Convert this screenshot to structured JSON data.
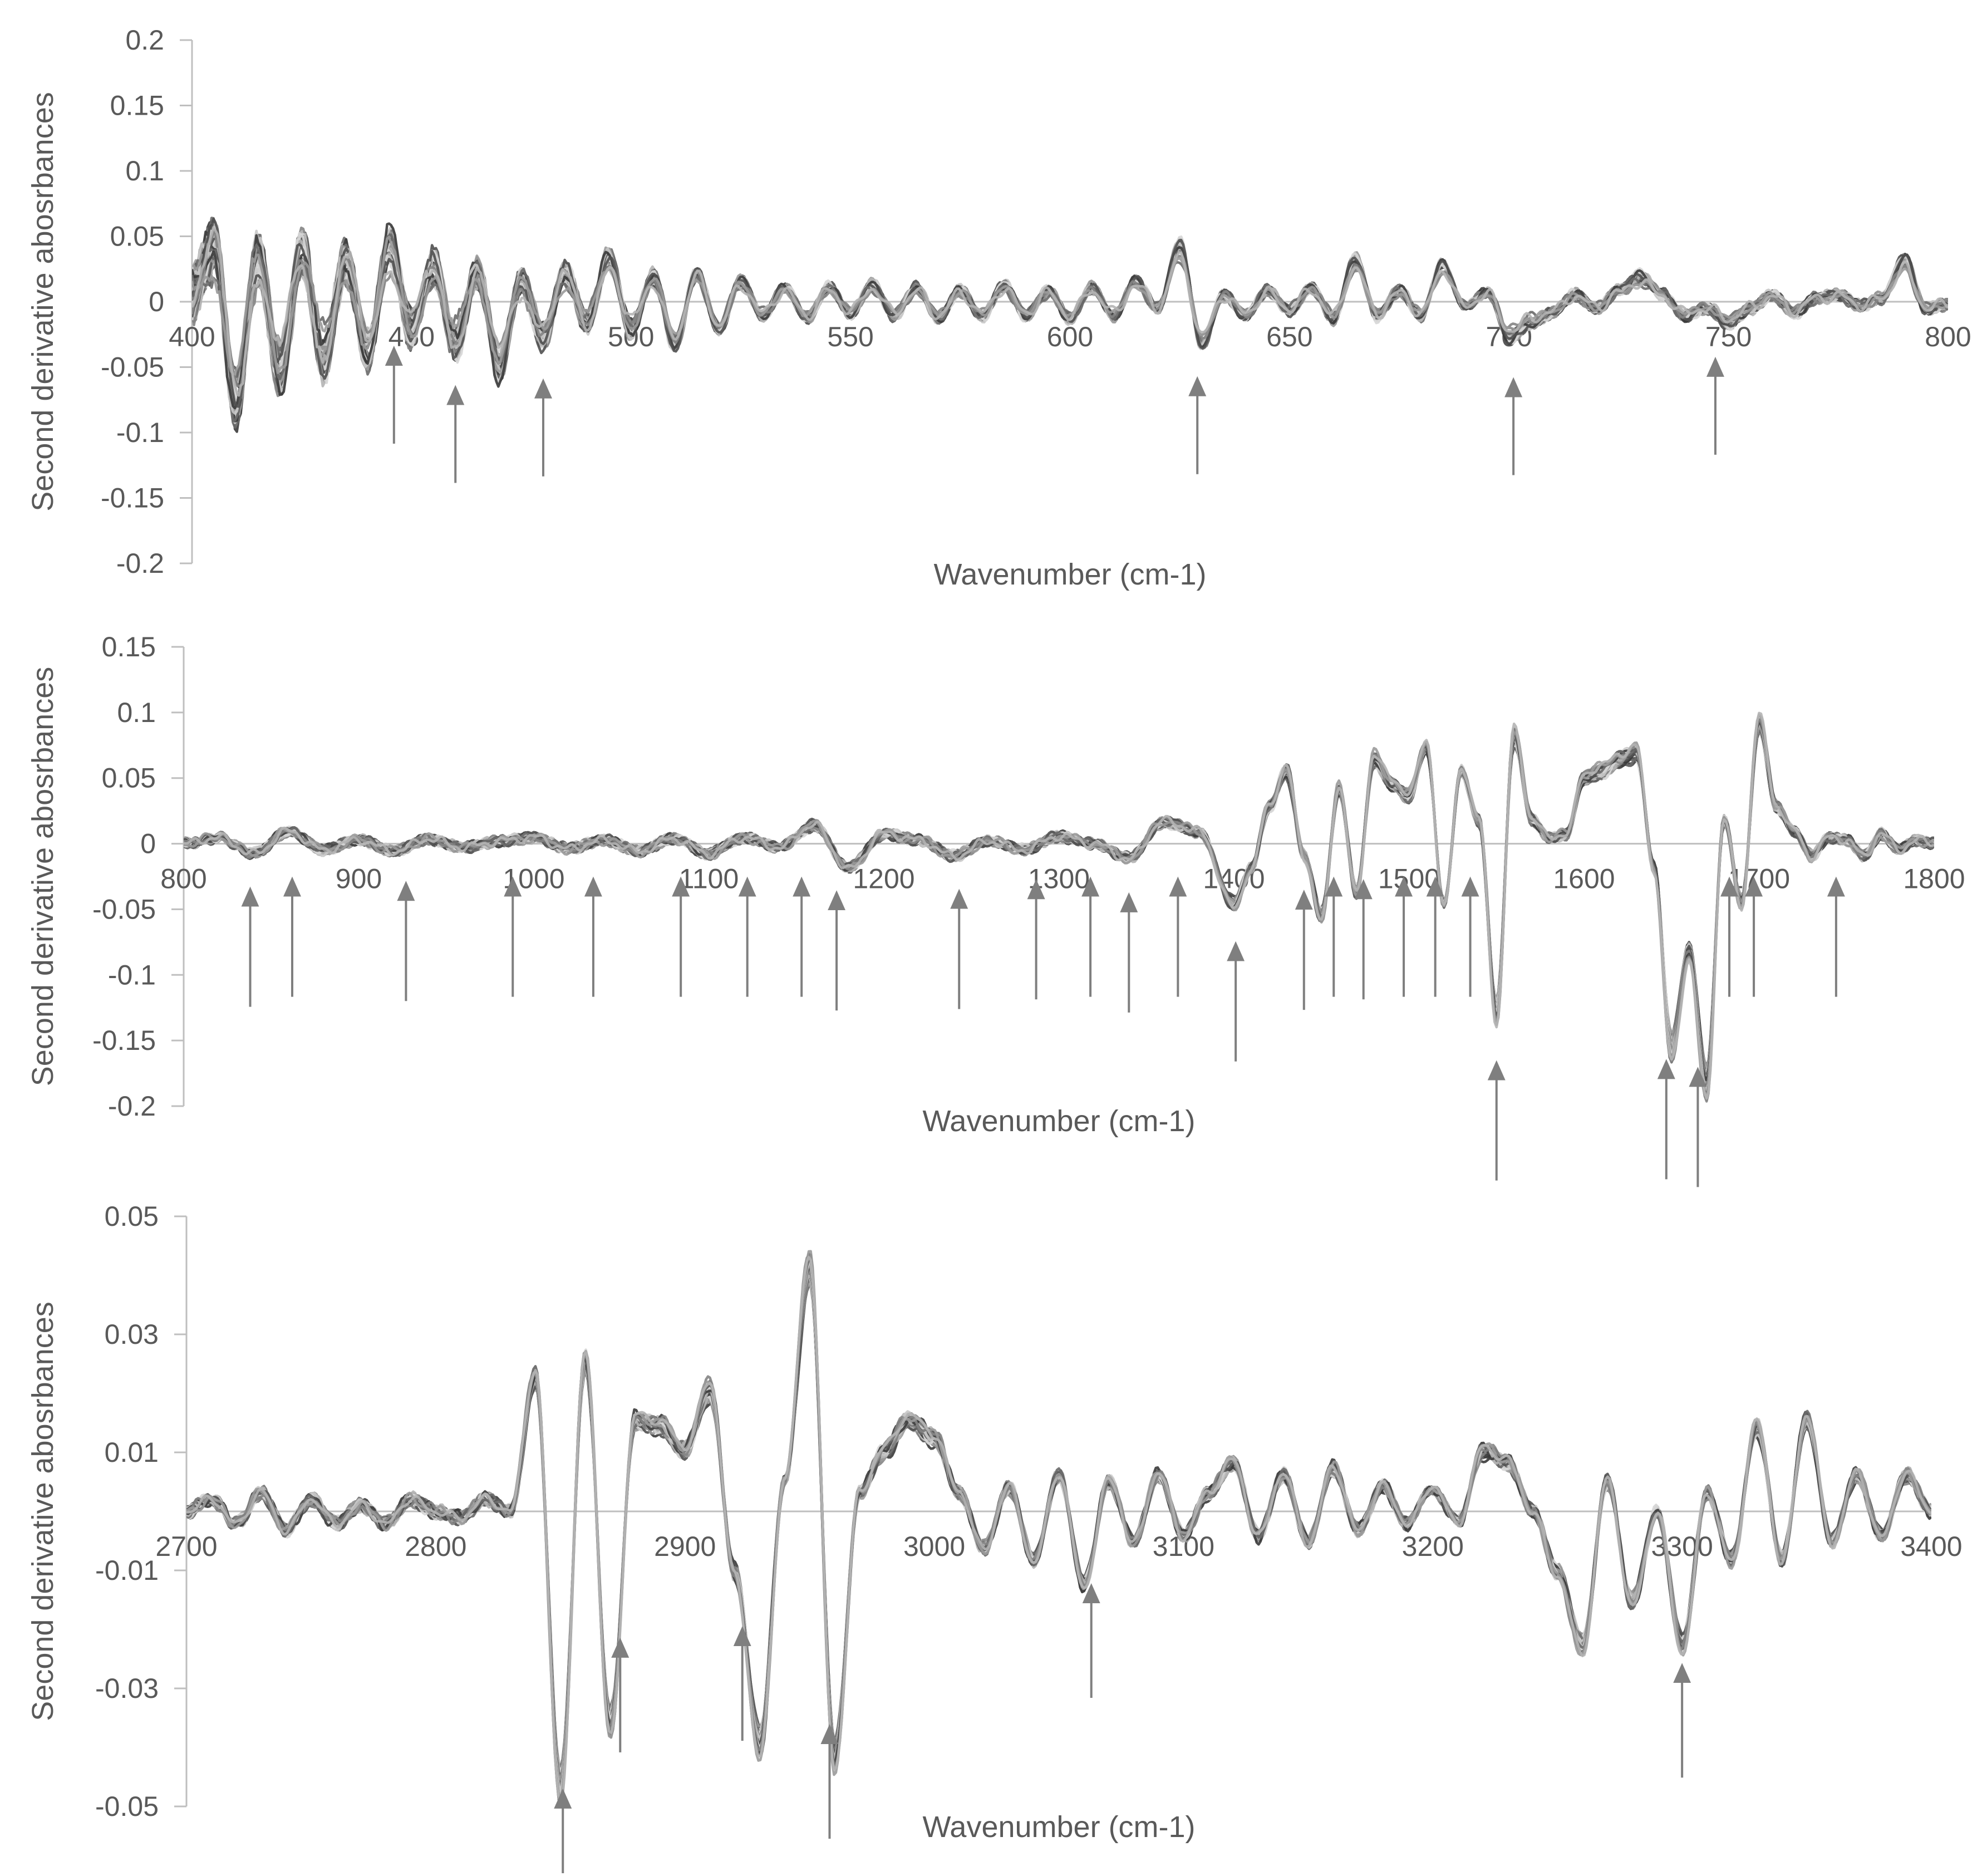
{
  "colors": {
    "background": "#ffffff",
    "axis": "#bfbfbf",
    "text": "#595959",
    "arrow": "#7f7f7f",
    "series_palette": [
      "#3a3a3a",
      "#505050",
      "#6a6a6a",
      "#848484",
      "#9a9a9a",
      "#b4b4b4",
      "#c8c8c8",
      "#d6d6d6"
    ]
  },
  "chart_data": [
    {
      "type": "line",
      "xlabel": "Wavenumber (cm-1)",
      "ylabel": "Second derivative abosrbances",
      "xlim": [
        400,
        800
      ],
      "ylim": [
        -0.2,
        0.2
      ],
      "x_ticks": [
        "400",
        "450",
        "500",
        "550",
        "600",
        "650",
        "700",
        "750",
        "800"
      ],
      "y_ticks": [
        "0.2",
        "0.15",
        "0.1",
        "0.05",
        "0",
        "-0.05",
        "-0.1",
        "-0.15",
        "-0.2"
      ],
      "grid": false,
      "legend": "none",
      "series_count": 30,
      "x": [
        400,
        405,
        410,
        415,
        420,
        425,
        430,
        435,
        440,
        445,
        450,
        455,
        460,
        465,
        470,
        475,
        480,
        485,
        490,
        495,
        500,
        505,
        510,
        515,
        520,
        525,
        530,
        535,
        540,
        545,
        550,
        555,
        560,
        565,
        570,
        575,
        580,
        585,
        590,
        595,
        600,
        605,
        610,
        615,
        620,
        625,
        630,
        635,
        640,
        645,
        650,
        655,
        660,
        665,
        670,
        675,
        680,
        685,
        690,
        695,
        700,
        705,
        710,
        715,
        720,
        725,
        730,
        735,
        740,
        745,
        750,
        755,
        760,
        765,
        770,
        775,
        780,
        785,
        790,
        795,
        800
      ],
      "mean_spectrum": [
        0.005,
        0.04,
        -0.07,
        0.03,
        -0.05,
        0.035,
        -0.04,
        0.03,
        -0.035,
        0.04,
        -0.02,
        0.025,
        -0.03,
        0.02,
        -0.045,
        0.015,
        -0.025,
        0.02,
        -0.015,
        0.03,
        -0.02,
        0.018,
        -0.03,
        0.02,
        -0.02,
        0.015,
        -0.01,
        0.01,
        -0.012,
        0.01,
        -0.008,
        0.012,
        -0.01,
        0.01,
        -0.012,
        0.008,
        -0.01,
        0.012,
        -0.01,
        0.008,
        -0.012,
        0.01,
        -0.01,
        0.015,
        -0.005,
        0.04,
        -0.03,
        0.005,
        -0.01,
        0.008,
        -0.006,
        0.01,
        -0.012,
        0.03,
        -0.01,
        0.008,
        -0.01,
        0.028,
        -0.005,
        0.008,
        -0.025,
        -0.015,
        -0.008,
        0.005,
        -0.005,
        0.008,
        0.018,
        0.005,
        -0.01,
        -0.005,
        -0.015,
        -0.005,
        0.005,
        -0.008,
        0.003,
        0.005,
        -0.003,
        0.003,
        0.03,
        -0.005,
        -0.002
      ],
      "marked_bands": [
        446,
        460,
        480,
        629,
        701,
        747
      ]
    },
    {
      "type": "line",
      "xlabel": "Wavenumber (cm-1)",
      "ylabel": "Second derivative abosrbances",
      "xlim": [
        800,
        1800
      ],
      "ylim": [
        -0.2,
        0.15
      ],
      "x_ticks": [
        "800",
        "900",
        "1000",
        "1100",
        "1200",
        "1300",
        "1400",
        "1500",
        "1600",
        "1700",
        "1800"
      ],
      "y_ticks": [
        "0.15",
        "0.1",
        "0.05",
        "0",
        "-0.05",
        "-0.1",
        "-0.15",
        "-0.2"
      ],
      "grid": false,
      "legend": "none",
      "series_count": 30,
      "x": [
        800,
        820,
        840,
        860,
        880,
        900,
        920,
        940,
        960,
        980,
        1000,
        1020,
        1040,
        1060,
        1080,
        1100,
        1120,
        1140,
        1160,
        1180,
        1200,
        1220,
        1240,
        1260,
        1280,
        1300,
        1320,
        1340,
        1360,
        1380,
        1400,
        1410,
        1420,
        1430,
        1440,
        1450,
        1460,
        1470,
        1480,
        1490,
        1500,
        1510,
        1520,
        1530,
        1540,
        1550,
        1560,
        1570,
        1580,
        1590,
        1600,
        1610,
        1620,
        1630,
        1640,
        1650,
        1660,
        1670,
        1680,
        1690,
        1700,
        1710,
        1720,
        1730,
        1740,
        1750,
        1760,
        1770,
        1780,
        1790,
        1800
      ],
      "mean_spectrum": [
        0.0,
        0.005,
        -0.008,
        0.01,
        -0.005,
        0.003,
        -0.006,
        0.004,
        -0.003,
        0.002,
        0.005,
        -0.004,
        0.003,
        -0.006,
        0.004,
        -0.008,
        0.005,
        -0.003,
        0.015,
        -0.02,
        0.008,
        0.003,
        -0.01,
        0.002,
        -0.005,
        0.006,
        0.0,
        -0.012,
        0.018,
        0.01,
        -0.05,
        -0.02,
        0.03,
        0.06,
        -0.01,
        -0.06,
        0.045,
        -0.04,
        0.07,
        0.05,
        0.04,
        0.08,
        -0.05,
        0.06,
        0.02,
        -0.14,
        0.09,
        0.02,
        0.005,
        0.008,
        0.055,
        0.06,
        0.07,
        0.075,
        -0.02,
        -0.17,
        -0.09,
        -0.2,
        0.02,
        -0.05,
        0.1,
        0.03,
        0.01,
        -0.01,
        0.005,
        0.003,
        -0.01,
        0.008,
        -0.005,
        0.003,
        0.0
      ],
      "marked_bands": [
        838,
        862,
        927,
        988,
        1034,
        1084,
        1122,
        1153,
        1173,
        1243,
        1287,
        1318,
        1340,
        1368,
        1401,
        1440,
        1457,
        1474,
        1497,
        1515,
        1535,
        1550,
        1647,
        1665,
        1683,
        1697,
        1744
      ]
    },
    {
      "type": "line",
      "xlabel": "Wavenumber (cm-1)",
      "ylabel": "Second derivative abosrbances",
      "xlim": [
        2700,
        3400
      ],
      "ylim": [
        -0.05,
        0.05
      ],
      "x_ticks": [
        "2700",
        "2800",
        "2900",
        "3000",
        "3100",
        "3200",
        "3300",
        "3400"
      ],
      "y_ticks": [
        "0.05",
        "0.03",
        "0.01",
        "-0.01",
        "-0.03",
        "-0.05"
      ],
      "grid": false,
      "legend": "none",
      "series_count": 30,
      "x": [
        2700,
        2710,
        2720,
        2730,
        2740,
        2750,
        2760,
        2770,
        2780,
        2790,
        2800,
        2810,
        2820,
        2830,
        2840,
        2850,
        2860,
        2870,
        2880,
        2890,
        2900,
        2910,
        2920,
        2930,
        2940,
        2950,
        2960,
        2970,
        2980,
        2990,
        3000,
        3010,
        3020,
        3030,
        3040,
        3050,
        3060,
        3070,
        3080,
        3090,
        3100,
        3110,
        3120,
        3130,
        3140,
        3150,
        3160,
        3170,
        3180,
        3190,
        3200,
        3210,
        3220,
        3230,
        3240,
        3250,
        3260,
        3270,
        3280,
        3290,
        3300,
        3310,
        3320,
        3330,
        3340,
        3350,
        3360,
        3370,
        3380,
        3390,
        3400
      ],
      "mean_spectrum": [
        0.0,
        0.002,
        -0.002,
        0.003,
        -0.003,
        0.002,
        -0.002,
        0.001,
        -0.002,
        0.002,
        0.0,
        -0.001,
        0.002,
        0.0,
        0.022,
        -0.045,
        0.025,
        -0.035,
        0.015,
        0.014,
        0.01,
        0.02,
        -0.01,
        -0.038,
        0.005,
        0.04,
        -0.04,
        0.003,
        0.01,
        0.015,
        0.012,
        0.003,
        -0.006,
        0.004,
        -0.008,
        0.006,
        -0.012,
        0.005,
        -0.005,
        0.006,
        -0.004,
        0.003,
        0.008,
        -0.004,
        0.006,
        -0.005,
        0.007,
        -0.003,
        0.004,
        -0.002,
        0.004,
        -0.002,
        0.01,
        0.008,
        0.0,
        -0.01,
        -0.022,
        0.005,
        -0.015,
        0.0,
        -0.022,
        0.003,
        -0.008,
        0.014,
        -0.008,
        0.015,
        -0.005,
        0.006,
        -0.004,
        0.006,
        0.0
      ],
      "marked_bands": [
        2851,
        2874,
        2923,
        2958,
        3063,
        3300
      ]
    }
  ]
}
